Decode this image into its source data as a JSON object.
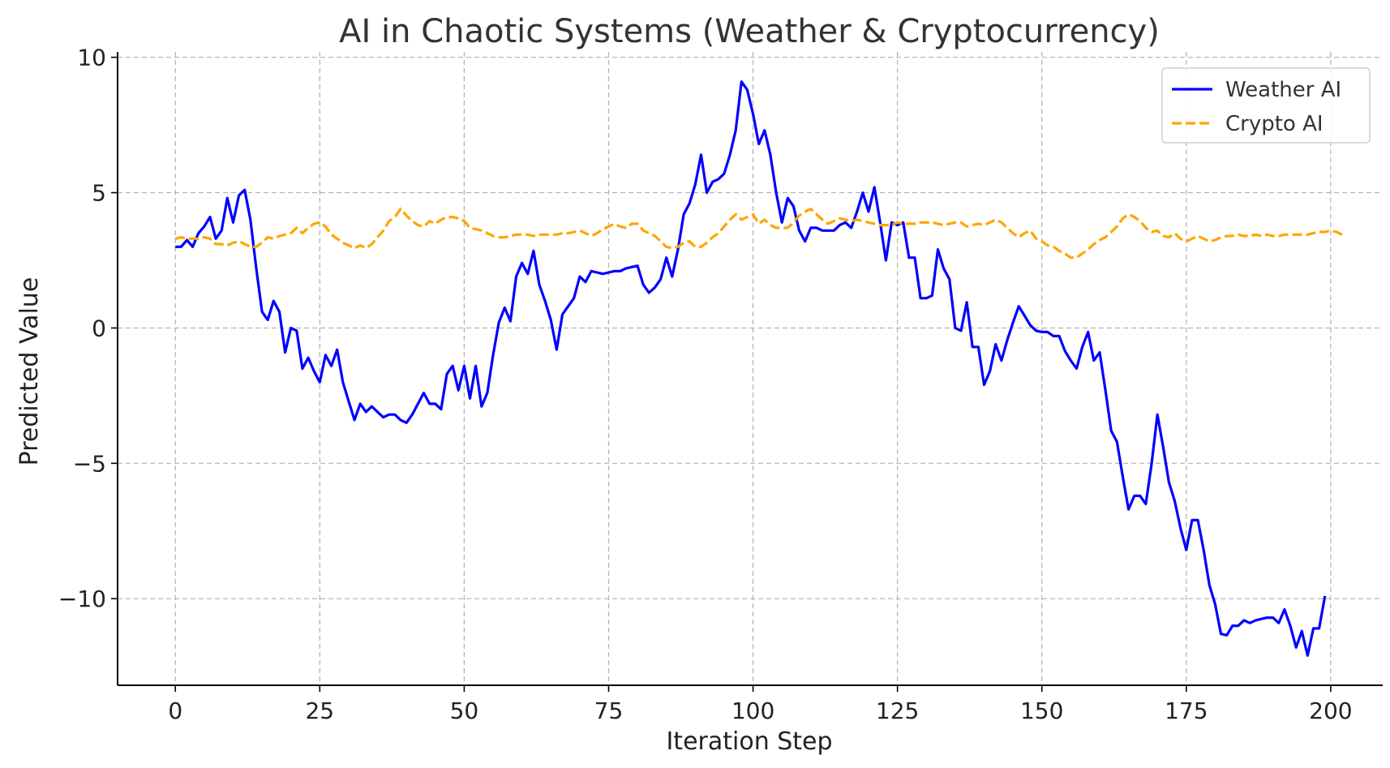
{
  "chart_data": {
    "type": "line",
    "title": "AI in Chaotic Systems (Weather & Cryptocurrency)",
    "xlabel": "Iteration Step",
    "ylabel": "Predicted Value",
    "xlim": [
      -10,
      209
    ],
    "ylim": [
      -13.2,
      10.2
    ],
    "xticks": [
      0,
      25,
      50,
      75,
      100,
      125,
      150,
      175,
      200
    ],
    "xtick_labels": [
      "0",
      "25",
      "50",
      "75",
      "100",
      "125",
      "150",
      "175",
      "200"
    ],
    "yticks": [
      -10,
      -5,
      0,
      5,
      10
    ],
    "ytick_labels": [
      "−10",
      "−5",
      "0",
      "5",
      "10"
    ],
    "grid": true,
    "legend_position": "top-right",
    "series": [
      {
        "name": "Weather AI",
        "color": "#0000ff",
        "style": "solid",
        "values": [
          3.0,
          3.0,
          3.25,
          3.0,
          3.5,
          3.75,
          4.1,
          3.3,
          3.6,
          4.8,
          3.9,
          4.9,
          5.1,
          4.0,
          2.2,
          0.6,
          0.3,
          1.0,
          0.6,
          -0.9,
          0.0,
          -0.1,
          -1.5,
          -1.1,
          -1.6,
          -2.0,
          -1.0,
          -1.4,
          -0.8,
          -2.0,
          -2.7,
          -3.4,
          -2.8,
          -3.1,
          -2.9,
          -3.1,
          -3.3,
          -3.2,
          -3.2,
          -3.4,
          -3.5,
          -3.2,
          -2.8,
          -2.4,
          -2.8,
          -2.8,
          -3.0,
          -1.7,
          -1.4,
          -2.3,
          -1.4,
          -2.6,
          -1.4,
          -2.9,
          -2.4,
          -1.0,
          0.2,
          0.75,
          0.25,
          1.9,
          2.4,
          2.0,
          2.85,
          1.6,
          1.0,
          0.3,
          -0.8,
          0.5,
          0.8,
          1.1,
          1.9,
          1.7,
          2.1,
          2.05,
          2.0,
          2.05,
          2.1,
          2.1,
          2.2,
          2.25,
          2.3,
          1.6,
          1.3,
          1.5,
          1.8,
          2.6,
          1.9,
          2.9,
          4.2,
          4.6,
          5.3,
          6.4,
          5.0,
          5.4,
          5.5,
          5.7,
          6.4,
          7.3,
          9.1,
          8.8,
          7.9,
          6.8,
          7.3,
          6.4,
          5.0,
          3.9,
          4.8,
          4.5,
          3.6,
          3.2,
          3.7,
          3.7,
          3.6,
          3.6,
          3.6,
          3.8,
          3.9,
          3.7,
          4.3,
          5.0,
          4.3,
          5.2,
          3.9,
          2.5,
          3.9,
          3.8,
          3.9,
          2.6,
          2.6,
          1.1,
          1.1,
          1.2,
          2.9,
          2.2,
          1.8,
          0.0,
          -0.1,
          0.95,
          -0.7,
          -0.7,
          -2.1,
          -1.6,
          -0.6,
          -1.2,
          -0.45,
          0.2,
          0.8,
          0.45,
          0.1,
          -0.1,
          -0.15,
          -0.15,
          -0.3,
          -0.3,
          -0.85,
          -1.2,
          -1.5,
          -0.7,
          -0.15,
          -1.2,
          -0.9,
          -2.3,
          -3.8,
          -4.2,
          -5.5,
          -6.7,
          -6.2,
          -6.2,
          -6.5,
          -5.0,
          -3.2,
          -4.4,
          -5.7,
          -6.4,
          -7.4,
          -8.2,
          -7.1,
          -7.1,
          -8.2,
          -9.5,
          -10.2,
          -11.3,
          -11.35,
          -11.0,
          -11.0,
          -10.8,
          -10.9,
          -10.8,
          -10.75,
          -10.7,
          -10.7,
          -10.9,
          -10.4,
          -11.0,
          -11.8,
          -11.2,
          -12.1,
          -11.1,
          -11.1,
          -9.9
        ]
      },
      {
        "name": "Crypto AI",
        "color": "#ffa500",
        "style": "dashed",
        "values": [
          3.3,
          3.35,
          3.3,
          3.3,
          3.3,
          3.35,
          3.3,
          3.1,
          3.1,
          3.05,
          3.15,
          3.2,
          3.1,
          3.0,
          3.0,
          3.15,
          3.35,
          3.3,
          3.4,
          3.45,
          3.5,
          3.7,
          3.5,
          3.7,
          3.85,
          3.9,
          3.75,
          3.45,
          3.3,
          3.15,
          3.05,
          2.95,
          3.05,
          2.95,
          3.1,
          3.35,
          3.6,
          3.95,
          4.1,
          4.4,
          4.15,
          3.95,
          3.8,
          3.75,
          3.95,
          3.85,
          4.0,
          4.1,
          4.1,
          4.05,
          3.95,
          3.7,
          3.65,
          3.6,
          3.5,
          3.4,
          3.35,
          3.35,
          3.4,
          3.45,
          3.45,
          3.45,
          3.4,
          3.45,
          3.45,
          3.45,
          3.45,
          3.5,
          3.5,
          3.55,
          3.6,
          3.5,
          3.4,
          3.5,
          3.65,
          3.75,
          3.85,
          3.75,
          3.7,
          3.85,
          3.85,
          3.6,
          3.5,
          3.4,
          3.2,
          3.0,
          2.95,
          3.0,
          3.15,
          3.2,
          3.0,
          3.0,
          3.15,
          3.35,
          3.5,
          3.75,
          4.0,
          4.2,
          4.0,
          4.1,
          4.2,
          3.85,
          4.0,
          3.8,
          3.7,
          3.7,
          3.7,
          3.9,
          4.15,
          4.3,
          4.4,
          4.2,
          4.0,
          3.85,
          3.95,
          4.05,
          4.0,
          3.95,
          4.0,
          3.95,
          3.9,
          3.85,
          3.8,
          3.8,
          3.8,
          3.9,
          3.85,
          3.85,
          3.85,
          3.9,
          3.9,
          3.9,
          3.85,
          3.8,
          3.85,
          3.9,
          3.9,
          3.75,
          3.8,
          3.85,
          3.8,
          3.9,
          4.0,
          3.9,
          3.7,
          3.5,
          3.35,
          3.5,
          3.6,
          3.3,
          3.2,
          3.05,
          3.0,
          2.85,
          2.75,
          2.6,
          2.6,
          2.75,
          2.9,
          3.1,
          3.25,
          3.35,
          3.55,
          3.75,
          4.05,
          4.2,
          4.1,
          3.95,
          3.7,
          3.55,
          3.6,
          3.4,
          3.35,
          3.5,
          3.3,
          3.2,
          3.3,
          3.4,
          3.3,
          3.2,
          3.25,
          3.35,
          3.4,
          3.4,
          3.45,
          3.4,
          3.4,
          3.45,
          3.4,
          3.45,
          3.4,
          3.4,
          3.45,
          3.45,
          3.45,
          3.45,
          3.45,
          3.5,
          3.55,
          3.55,
          3.6,
          3.55,
          3.45
        ]
      }
    ]
  }
}
